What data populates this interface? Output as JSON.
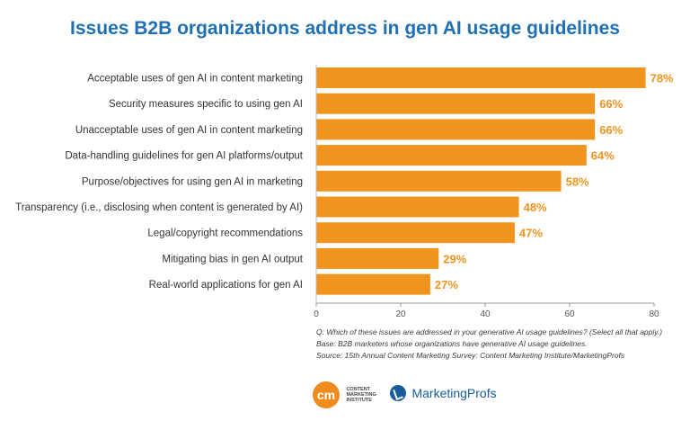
{
  "title": "Issues B2B organizations address in gen AI usage guidelines",
  "chart_data": {
    "type": "bar",
    "orientation": "horizontal",
    "categories": [
      "Acceptable uses of gen AI in content marketing",
      "Security measures specific to using gen AI",
      "Unacceptable uses of gen AI in content marketing",
      "Data-handling guidelines for gen AI platforms/output",
      "Purpose/objectives for using gen AI in marketing",
      "Transparency (i.e., disclosing when content is generated by AI)",
      "Legal/copyright recommendations",
      "Mitigating bias in gen AI output",
      "Real-world applications for gen AI"
    ],
    "values": [
      78,
      66,
      66,
      64,
      58,
      48,
      47,
      29,
      27
    ],
    "value_labels": [
      "78%",
      "66%",
      "66%",
      "64%",
      "58%",
      "48%",
      "47%",
      "29%",
      "27%"
    ],
    "xlim": [
      0,
      80
    ],
    "x_ticks": [
      "0",
      "20",
      "40",
      "60",
      "80"
    ],
    "grid": false,
    "bar_color": "#f0941e",
    "label_color": "#f0941e"
  },
  "notes": {
    "question": "Q: Which of these issues are addressed in your generative AI usage guidelines? (Select all that apply.)",
    "base": "Base: B2B marketers whose organizations have generative AI usage guidelines.",
    "source": "Source: 15th Annual Content Marketing Survey: Content Marketing Institute/MarketingProfs"
  },
  "logos": {
    "cmi_mark": "cm",
    "cmi_name": "CONTENT\nMARKETING\nINSTITUTE",
    "mp_name": "MarketingProfs"
  }
}
